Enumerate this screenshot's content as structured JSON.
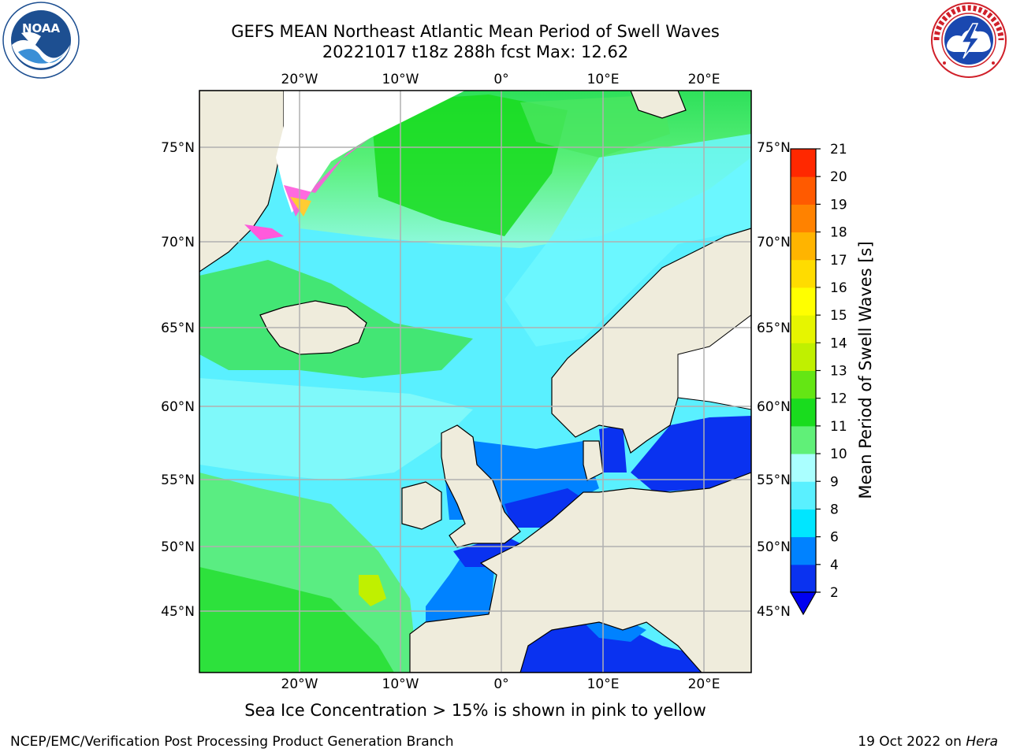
{
  "header": {
    "title_line1": "GEFS MEAN Northeast Atlantic Mean Period of Swell Waves",
    "title_line2": "20221017 t18z 288h fcst   Max: 12.62"
  },
  "logos": {
    "left": {
      "icon": "noaa-logo-icon",
      "text": "NOAA"
    },
    "right": {
      "icon": "national-weather-service-logo-icon"
    }
  },
  "map": {
    "lon_labels": [
      "20°W",
      "10°W",
      "0°",
      "10°E",
      "20°E"
    ],
    "lat_labels": [
      "75°N",
      "70°N",
      "65°N",
      "60°N",
      "55°N",
      "50°N",
      "45°N"
    ],
    "land_color": "#efecdc",
    "ice_color": "#ffffff",
    "coast_color": "#000000",
    "grid_color": "#b0b0b0",
    "grid": true
  },
  "colorbar": {
    "label": "Mean Period of Swell Waves [s]",
    "ticks": [
      "2",
      "4",
      "6",
      "8",
      "9",
      "10",
      "11",
      "12",
      "13",
      "14",
      "15",
      "16",
      "17",
      "18",
      "19",
      "20",
      "21"
    ],
    "colors": [
      "#0a32f0",
      "#0082ff",
      "#00e6ff",
      "#5af0ff",
      "#aaffff",
      "#60f078",
      "#19dc1e",
      "#64e614",
      "#c0f000",
      "#e6f500",
      "#ffff00",
      "#ffdc00",
      "#ffb400",
      "#ff8200",
      "#ff5a00",
      "#ff2800"
    ],
    "extend_color": "#0000f0"
  },
  "footer": {
    "ice_note": "Sea Ice Concentration > 15% is shown in pink to yellow",
    "branch": "NCEP/EMC/Verification Post Processing Product Generation Branch",
    "date": "19 Oct 2022 on ",
    "machine": "Hera"
  }
}
